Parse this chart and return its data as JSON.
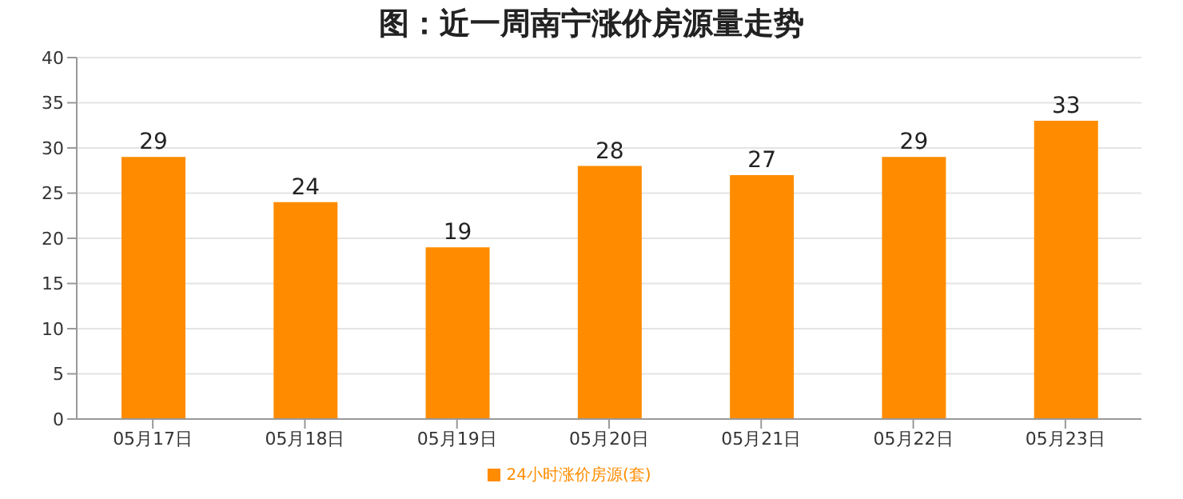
{
  "chart_data": {
    "type": "bar",
    "title": "图：近一周南宁涨价房源量走势",
    "categories": [
      "05月17日",
      "05月18日",
      "05月19日",
      "05月20日",
      "05月21日",
      "05月22日",
      "05月23日"
    ],
    "series": [
      {
        "name": "24小时涨价房源(套)",
        "color": "#ff8c00",
        "values": [
          29,
          24,
          19,
          28,
          27,
          29,
          33
        ]
      }
    ],
    "ylim": [
      0,
      40
    ],
    "yticks": [
      0,
      5,
      10,
      15,
      20,
      25,
      30,
      35,
      40
    ],
    "grid": "y",
    "legend": "bottom",
    "data_labels": true
  }
}
